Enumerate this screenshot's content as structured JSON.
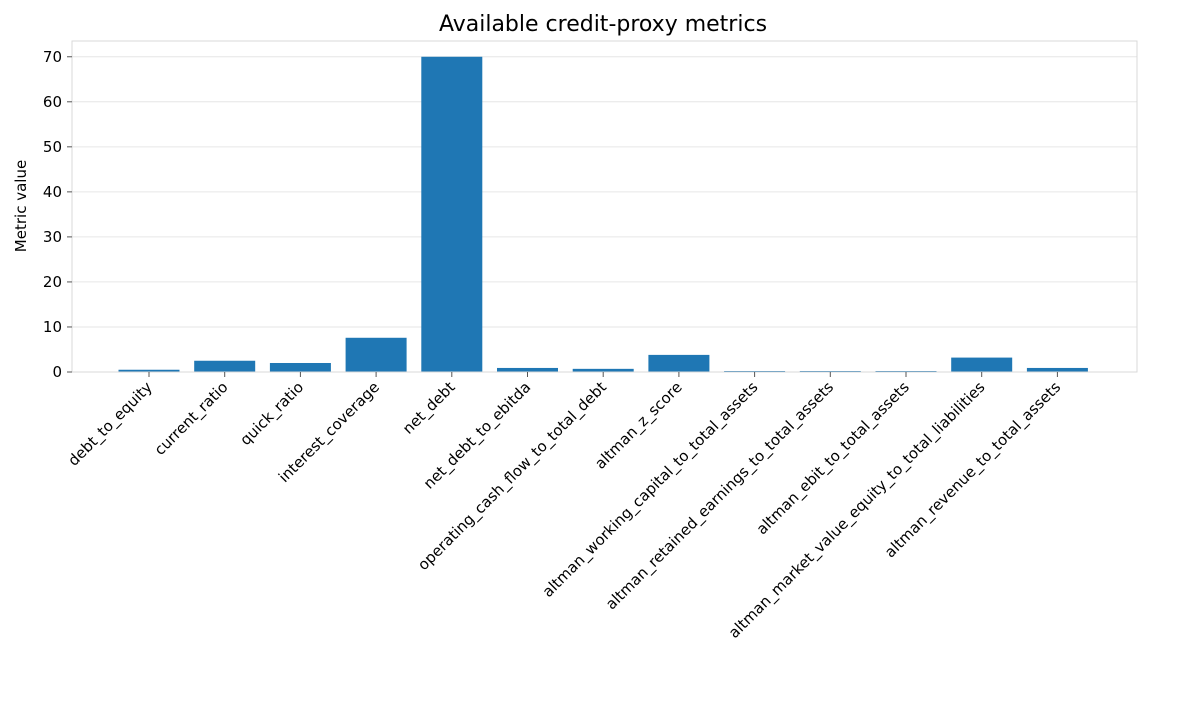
{
  "chart_data": {
    "type": "bar",
    "title": "Available credit-proxy metrics",
    "xlabel": "",
    "ylabel": "Metric value",
    "categories": [
      "debt_to_equity",
      "current_ratio",
      "quick_ratio",
      "interest_coverage",
      "net_debt",
      "net_debt_to_ebitda",
      "operating_cash_flow_to_total_debt",
      "altman_z_score",
      "altman_working_capital_to_total_assets",
      "altman_retained_earnings_to_total_assets",
      "altman_ebit_to_total_assets",
      "altman_market_value_equity_to_total_liabilities",
      "altman_revenue_to_total_assets"
    ],
    "values": [
      0.5,
      2.5,
      2.0,
      7.6,
      70.0,
      0.9,
      0.7,
      3.8,
      0.2,
      0.2,
      0.2,
      3.2,
      0.9
    ],
    "ylim": [
      0,
      73.5
    ],
    "yticks": [
      0,
      10,
      20,
      30,
      40,
      50,
      60,
      70
    ],
    "grid": "horizontal",
    "bar_color": "#1f77b4",
    "grid_color": "#e6e6e6",
    "spine_color": "#d9d9d9"
  }
}
